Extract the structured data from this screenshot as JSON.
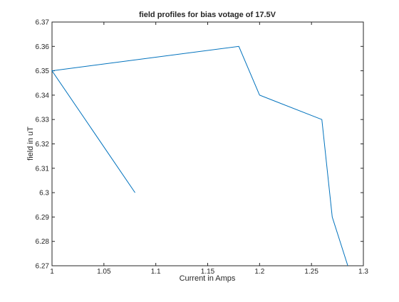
{
  "chart_data": {
    "type": "line",
    "title": "field profiles for bias votage of 17.5V",
    "xlabel": "Current in Amps",
    "ylabel": "field in uT",
    "xlim": [
      1,
      1.3
    ],
    "ylim": [
      6.27,
      6.37
    ],
    "xticks": [
      "1",
      "1.05",
      "1.1",
      "1.15",
      "1.2",
      "1.25",
      "1.3"
    ],
    "yticks": [
      "6.27",
      "6.28",
      "6.29",
      "6.3",
      "6.31",
      "6.32",
      "6.33",
      "6.34",
      "6.35",
      "6.36",
      "6.37"
    ],
    "grid": false,
    "series": [
      {
        "color": "#0072bd",
        "x": [
          1.08,
          1.0,
          1.18,
          1.2,
          1.26,
          1.27,
          1.285
        ],
        "y": [
          6.3,
          6.35,
          6.36,
          6.34,
          6.33,
          6.29,
          6.27
        ]
      }
    ]
  }
}
